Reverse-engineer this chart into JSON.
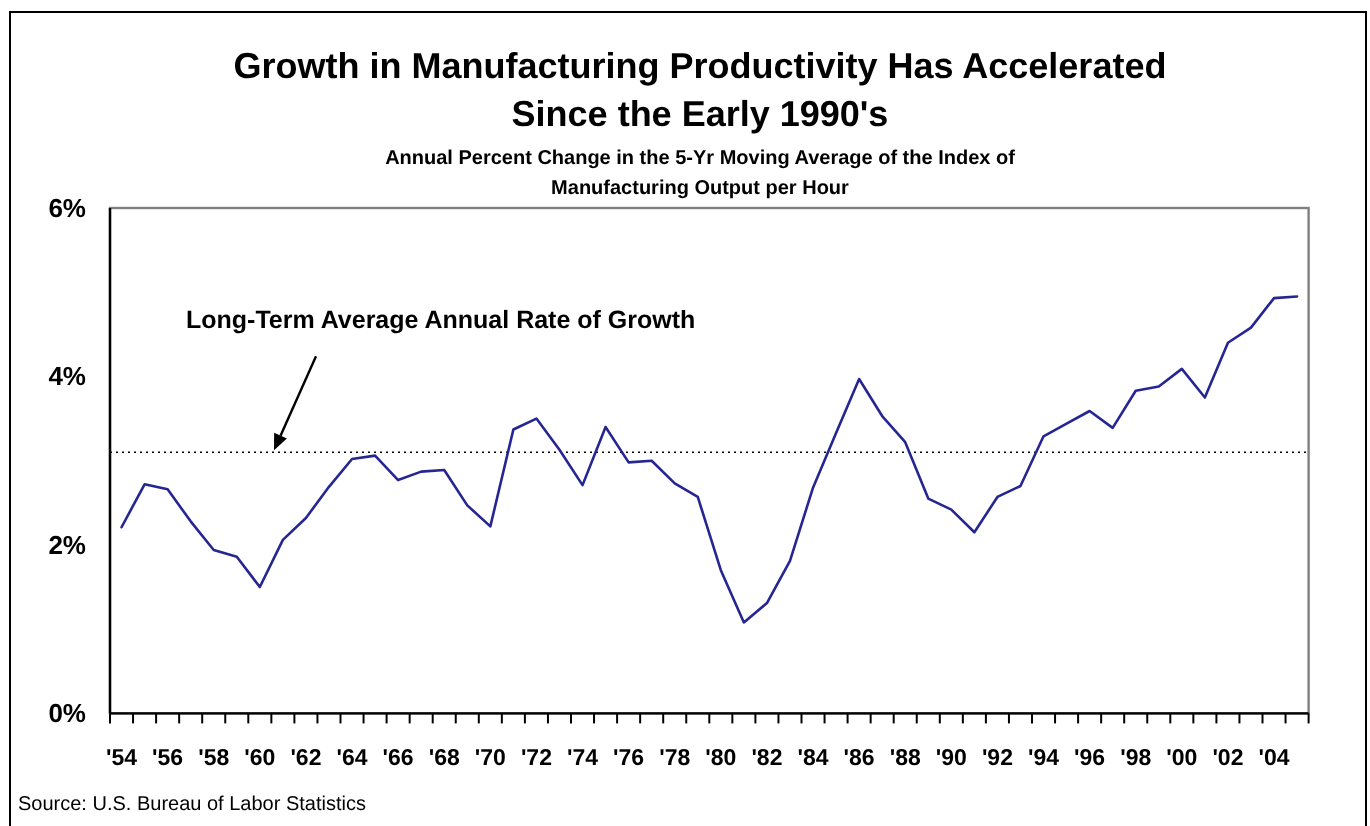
{
  "chart_data": {
    "type": "line",
    "title": "Growth in Manufacturing Productivity Has Accelerated\nSince the Early 1990's",
    "subtitle": "Annual Percent Change in the 5-Yr Moving Average of the Index of\nManufacturing Output per Hour",
    "categories": [
      "'54",
      null,
      "'56",
      null,
      "'58",
      null,
      "'60",
      null,
      "'62",
      null,
      "'64",
      null,
      "'66",
      null,
      "'68",
      null,
      "'70",
      null,
      "'72",
      null,
      "'74",
      null,
      "'76",
      null,
      "'78",
      null,
      "'80",
      null,
      "'82",
      null,
      "'84",
      null,
      "'86",
      null,
      "'88",
      null,
      "'90",
      null,
      "'92",
      null,
      "'94",
      null,
      "'96",
      null,
      "'98",
      null,
      "'00",
      null,
      "'02",
      null,
      "'04",
      null
    ],
    "series": [
      {
        "color": "#262693",
        "values": [
          2.21,
          2.72,
          2.66,
          2.28,
          1.94,
          1.86,
          1.5,
          2.06,
          2.32,
          2.69,
          3.02,
          3.06,
          2.77,
          2.87,
          2.89,
          2.47,
          2.22,
          3.37,
          3.5,
          3.13,
          2.71,
          3.4,
          2.98,
          3.0,
          2.73,
          2.57,
          1.7,
          1.08,
          1.31,
          1.81,
          2.68,
          3.33,
          3.97,
          3.53,
          3.22,
          2.55,
          2.42,
          2.15,
          2.57,
          2.7,
          3.29,
          3.44,
          3.59,
          3.39,
          3.83,
          3.88,
          4.09,
          3.75,
          4.4,
          4.58,
          4.93,
          4.95
        ]
      }
    ],
    "ylim": [
      0,
      6
    ],
    "yticks": [
      {
        "value": 0,
        "label": "0%"
      },
      {
        "value": 2,
        "label": "2%"
      },
      {
        "value": 4,
        "label": "4%"
      },
      {
        "value": 6,
        "label": "6%"
      }
    ],
    "ref_lines": [
      {
        "axis": "y",
        "value": 3.1,
        "label": "Long-Term Average Annual Rate of Growth",
        "color": "#000000",
        "line_style": "dotted"
      }
    ],
    "annotations": [
      "Source: U.S. Bureau of Labor Statistics"
    ]
  }
}
